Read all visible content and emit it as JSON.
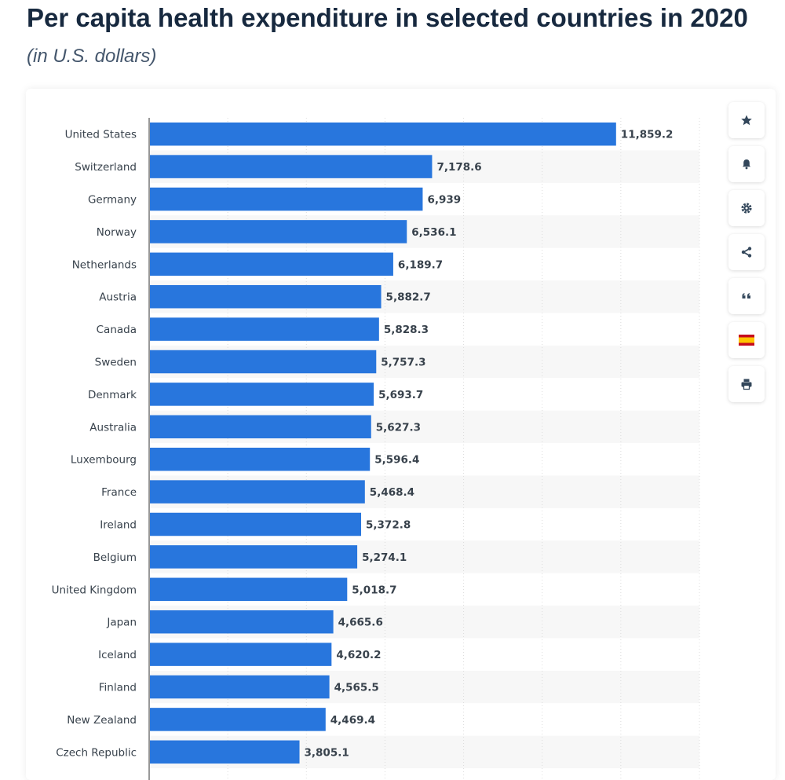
{
  "header": {
    "title": "Per capita health expenditure in selected countries in 2020",
    "subtitle": "(in U.S. dollars)"
  },
  "toolbar": {
    "icons": [
      "star-icon",
      "bell-icon",
      "gear-icon",
      "share-icon",
      "quote-icon",
      "spain-flag-icon",
      "print-icon"
    ]
  },
  "colors": {
    "bar": "#2876dd",
    "stripe": "#f7f7f7",
    "title": "#17293f"
  },
  "chart_data": {
    "type": "bar",
    "orientation": "horizontal",
    "categories": [
      "United States",
      "Switzerland",
      "Germany",
      "Norway",
      "Netherlands",
      "Austria",
      "Canada",
      "Sweden",
      "Denmark",
      "Australia",
      "Luxembourg",
      "France",
      "Ireland",
      "Belgium",
      "United Kingdom",
      "Japan",
      "Iceland",
      "Finland",
      "New Zealand",
      "Czech Republic"
    ],
    "values": [
      11859.2,
      7178.6,
      6939,
      6536.1,
      6189.7,
      5882.7,
      5828.3,
      5757.3,
      5693.7,
      5627.3,
      5596.4,
      5468.4,
      5372.8,
      5274.1,
      5018.7,
      4665.6,
      4620.2,
      4565.5,
      4469.4,
      3805.1
    ],
    "value_labels": [
      "11,859.2",
      "7,178.6",
      "6,939",
      "6,536.1",
      "6,189.7",
      "5,882.7",
      "5,828.3",
      "5,757.3",
      "5,693.7",
      "5,627.3",
      "5,596.4",
      "5,468.4",
      "5,372.8",
      "5,274.1",
      "5,018.7",
      "4,665.6",
      "4,620.2",
      "4,565.5",
      "4,469.4",
      "3,805.1"
    ],
    "xlim": [
      0,
      14000
    ],
    "grid": true,
    "legend": "none"
  }
}
